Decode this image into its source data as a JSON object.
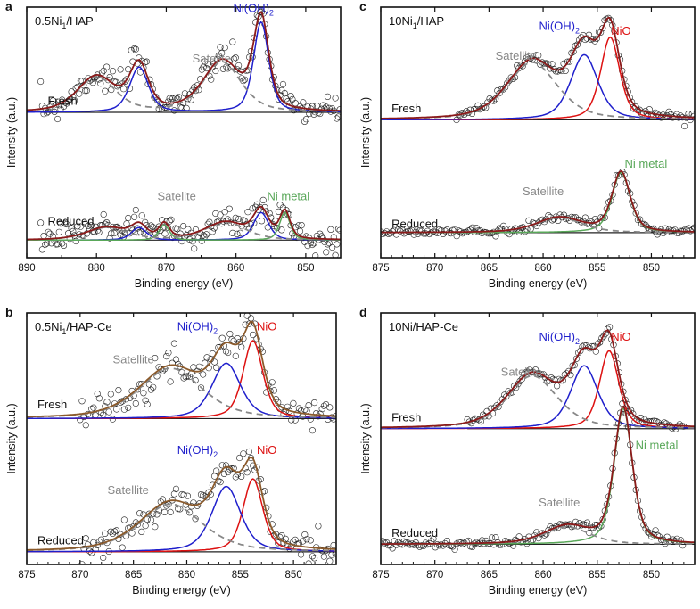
{
  "figure": {
    "ylabel": "Intensity (a.u.)",
    "xlabel": "Binding energy (eV)"
  },
  "colors": {
    "data_points": "#222222",
    "envelope": "#8b1a1a",
    "envelope_b": "#8b5a2b",
    "ni_oh2": "#1f1fcc",
    "nio": "#dd1111",
    "satellite": "#888888",
    "ni_metal": "#5aa85a",
    "baseline": "#222222"
  },
  "chart_data": [
    {
      "panel": "a",
      "type": "line",
      "title": "0.5Ni1/HAP",
      "title_main": "0.5Ni",
      "title_sub": "1",
      "title_rest": "/HAP",
      "xlabel": "Binding energy (eV)",
      "ylabel": "Intensity (a.u.)",
      "xlim": [
        890,
        845
      ],
      "xticks": [
        890,
        880,
        870,
        860,
        850
      ],
      "spectra": [
        {
          "label": "Fresh",
          "baseline": 0.58,
          "data_range": [
            888,
            845
          ],
          "components": [
            {
              "name": "Ni(OH)2",
              "role": "ni_oh2",
              "peaks": [
                {
                  "center": 856.4,
                  "height": 0.36,
                  "fwhm": 2.6
                },
                {
                  "center": 873.9,
                  "height": 0.18,
                  "fwhm": 3.2
                }
              ]
            },
            {
              "name": "Satellite",
              "role": "satellite",
              "peaks": [
                {
                  "center": 862.0,
                  "height": 0.2,
                  "fwhm": 6.5
                },
                {
                  "center": 880.0,
                  "height": 0.14,
                  "fwhm": 6.5
                }
              ]
            }
          ]
        },
        {
          "label": "Reduced",
          "baseline": 0.07,
          "data_range": [
            888,
            845
          ],
          "components": [
            {
              "name": "Ni(OH)2",
              "role": "ni_oh2",
              "peaks": [
                {
                  "center": 856.4,
                  "height": 0.11,
                  "fwhm": 2.6
                },
                {
                  "center": 873.9,
                  "height": 0.05,
                  "fwhm": 2.6
                }
              ]
            },
            {
              "name": "Ni metal",
              "role": "ni_metal",
              "peaks": [
                {
                  "center": 853.0,
                  "height": 0.11,
                  "fwhm": 1.8
                },
                {
                  "center": 870.3,
                  "height": 0.06,
                  "fwhm": 1.8
                }
              ]
            },
            {
              "name": "Satellite",
              "role": "satellite",
              "peaks": [
                {
                  "center": 861.5,
                  "height": 0.07,
                  "fwhm": 7.0
                },
                {
                  "center": 878.5,
                  "height": 0.05,
                  "fwhm": 7.0
                }
              ]
            }
          ]
        }
      ],
      "annotations": [
        {
          "text": "Ni(OH)",
          "sub": "2",
          "role": "ni_oh2",
          "x": 857.5,
          "y": 0.98
        },
        {
          "text": "Satelite",
          "role": "satellite",
          "x": 863.5,
          "y": 0.78
        },
        {
          "text": "Fresh",
          "role": "label",
          "x": 887,
          "y": 0.61
        },
        {
          "text": "Satelite",
          "role": "satellite",
          "x": 868.5,
          "y": 0.23
        },
        {
          "text": "Ni metal",
          "role": "ni_metal",
          "x": 852.5,
          "y": 0.23
        },
        {
          "text": "Reduced",
          "role": "label",
          "x": 887,
          "y": 0.13
        }
      ]
    },
    {
      "panel": "b",
      "type": "line",
      "title": "0.5Ni1/HAP-Ce",
      "title_main": "0.5Ni",
      "title_sub": "1",
      "title_rest": "/HAP-Ce",
      "xlabel": "Binding energy (eV)",
      "ylabel": "Intensity (a.u.)",
      "xlim": [
        875,
        846
      ],
      "xticks": [
        875,
        870,
        865,
        860,
        855,
        850
      ],
      "spectra": [
        {
          "label": "Fresh",
          "baseline": 0.58,
          "data_range": [
            870,
            846
          ],
          "components": [
            {
              "name": "NiO",
              "role": "nio",
              "peaks": [
                {
                  "center": 853.8,
                  "height": 0.31,
                  "fwhm": 2.2
                }
              ]
            },
            {
              "name": "Ni(OH)2",
              "role": "ni_oh2",
              "peaks": [
                {
                  "center": 856.3,
                  "height": 0.22,
                  "fwhm": 3.2
                }
              ]
            },
            {
              "name": "Satellite",
              "role": "satellite",
              "peaks": [
                {
                  "center": 861.5,
                  "height": 0.2,
                  "fwhm": 7.0
                }
              ]
            }
          ]
        },
        {
          "label": "Reduced",
          "baseline": 0.05,
          "data_range": [
            870,
            846
          ],
          "components": [
            {
              "name": "NiO",
              "role": "nio",
              "peaks": [
                {
                  "center": 853.8,
                  "height": 0.29,
                  "fwhm": 2.2
                }
              ]
            },
            {
              "name": "Ni(OH)2",
              "role": "ni_oh2",
              "peaks": [
                {
                  "center": 856.3,
                  "height": 0.26,
                  "fwhm": 3.2
                }
              ]
            },
            {
              "name": "Satellite",
              "role": "satellite",
              "peaks": [
                {
                  "center": 861.5,
                  "height": 0.19,
                  "fwhm": 7.0
                }
              ]
            }
          ]
        }
      ],
      "annotations": [
        {
          "text": "Ni(OH)",
          "sub": "2",
          "role": "ni_oh2",
          "x": 859.0,
          "y": 0.93
        },
        {
          "text": "NiO",
          "role": "nio",
          "x": 852.5,
          "y": 0.93
        },
        {
          "text": "Satellite",
          "role": "satellite",
          "x": 865.0,
          "y": 0.8
        },
        {
          "text": "Fresh",
          "role": "label",
          "x": 874,
          "y": 0.62
        },
        {
          "text": "Ni(OH)",
          "sub": "2",
          "role": "ni_oh2",
          "x": 859.0,
          "y": 0.44
        },
        {
          "text": "NiO",
          "role": "nio",
          "x": 852.5,
          "y": 0.44
        },
        {
          "text": "Satellite",
          "role": "satellite",
          "x": 865.5,
          "y": 0.28
        },
        {
          "text": "Reduced",
          "role": "label",
          "x": 874,
          "y": 0.08
        }
      ]
    },
    {
      "panel": "c",
      "type": "line",
      "title": "10Ni1/HAP",
      "title_main": "10Ni",
      "title_sub": "1",
      "title_rest": "/HAP",
      "xlabel": "Binding energy (eV)",
      "ylabel": "Intensity (a.u.)",
      "xlim": [
        875,
        846
      ],
      "xticks": [
        875,
        870,
        865,
        860,
        855,
        850
      ],
      "spectra": [
        {
          "label": "Fresh",
          "baseline": 0.55,
          "data_range": [
            868,
            846
          ],
          "components": [
            {
              "name": "NiO",
              "role": "nio",
              "peaks": [
                {
                  "center": 853.8,
                  "height": 0.33,
                  "fwhm": 2.1
                }
              ]
            },
            {
              "name": "Ni(OH)2",
              "role": "ni_oh2",
              "peaks": [
                {
                  "center": 856.2,
                  "height": 0.26,
                  "fwhm": 3.0
                }
              ]
            },
            {
              "name": "Satellite",
              "role": "satellite",
              "peaks": [
                {
                  "center": 861.0,
                  "height": 0.23,
                  "fwhm": 5.5
                }
              ]
            }
          ]
        },
        {
          "label": "Reduced",
          "baseline": 0.1,
          "data_range": [
            875,
            846
          ],
          "components": [
            {
              "name": "Ni metal",
              "role": "ni_metal",
              "peaks": [
                {
                  "center": 852.8,
                  "height": 0.24,
                  "fwhm": 2.0
                }
              ]
            },
            {
              "name": "Satellite",
              "role": "satellite",
              "peaks": [
                {
                  "center": 858.5,
                  "height": 0.06,
                  "fwhm": 5.0
                }
              ]
            }
          ]
        }
      ],
      "annotations": [
        {
          "text": "Ni(OH)",
          "sub": "2",
          "role": "ni_oh2",
          "x": 858.5,
          "y": 0.91
        },
        {
          "text": "NiO",
          "role": "nio",
          "x": 852.8,
          "y": 0.89
        },
        {
          "text": "Satellite",
          "role": "satellite",
          "x": 862.5,
          "y": 0.79
        },
        {
          "text": "Fresh",
          "role": "label",
          "x": 874,
          "y": 0.58
        },
        {
          "text": "Satellite",
          "role": "satellite",
          "x": 860.0,
          "y": 0.25
        },
        {
          "text": "Ni metal",
          "role": "ni_metal",
          "x": 850.5,
          "y": 0.36
        },
        {
          "text": "Reduced",
          "role": "label",
          "x": 874,
          "y": 0.12
        }
      ]
    },
    {
      "panel": "d",
      "type": "line",
      "title": "10Ni/HAP-Ce",
      "title_main": "10Ni/HAP-Ce",
      "title_sub": "",
      "title_rest": "",
      "xlabel": "Binding energy (eV)",
      "ylabel": "Intensity (a.u.)",
      "xlim": [
        875,
        846
      ],
      "xticks": [
        875,
        870,
        865,
        860,
        855,
        850
      ],
      "spectra": [
        {
          "label": "Fresh",
          "baseline": 0.54,
          "data_range": [
            867,
            847
          ],
          "components": [
            {
              "name": "NiO",
              "role": "nio",
              "peaks": [
                {
                  "center": 853.9,
                  "height": 0.31,
                  "fwhm": 2.1
                }
              ]
            },
            {
              "name": "Ni(OH)2",
              "role": "ni_oh2",
              "peaks": [
                {
                  "center": 856.2,
                  "height": 0.25,
                  "fwhm": 3.0
                }
              ]
            },
            {
              "name": "Satellite",
              "role": "satellite",
              "peaks": [
                {
                  "center": 861.0,
                  "height": 0.21,
                  "fwhm": 5.5
                }
              ]
            }
          ]
        },
        {
          "label": "Reduced",
          "baseline": 0.08,
          "data_range": [
            875,
            847
          ],
          "components": [
            {
              "name": "Ni metal",
              "role": "ni_metal",
              "peaks": [
                {
                  "center": 852.6,
                  "height": 0.54,
                  "fwhm": 2.0
                }
              ]
            },
            {
              "name": "Satellite",
              "role": "satellite",
              "peaks": [
                {
                  "center": 857.8,
                  "height": 0.07,
                  "fwhm": 5.0
                }
              ]
            }
          ]
        }
      ],
      "annotations": [
        {
          "text": "Ni(OH)",
          "sub": "2",
          "role": "ni_oh2",
          "x": 858.5,
          "y": 0.89
        },
        {
          "text": "NiO",
          "role": "nio",
          "x": 852.8,
          "y": 0.89
        },
        {
          "text": "Satellite",
          "role": "satellite",
          "x": 862.0,
          "y": 0.75
        },
        {
          "text": "Fresh",
          "role": "label",
          "x": 874,
          "y": 0.57
        },
        {
          "text": "Ni metal",
          "role": "ni_metal",
          "x": 849.5,
          "y": 0.46
        },
        {
          "text": "Satellite",
          "role": "satellite",
          "x": 858.5,
          "y": 0.23
        },
        {
          "text": "Reduced",
          "role": "label",
          "x": 874,
          "y": 0.11
        }
      ]
    }
  ]
}
